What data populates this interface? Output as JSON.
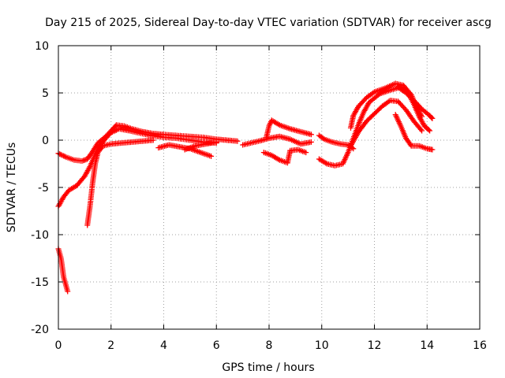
{
  "chart_data": {
    "type": "scatter",
    "title": "Day 215 of 2025, Sidereal Day-to-day VTEC variation (SDTVAR) for receiver ascg",
    "xlabel": "GPS time / hours",
    "ylabel": "SDTVAR / TECUs",
    "xlim": [
      0,
      16
    ],
    "ylim": [
      -20,
      10
    ],
    "xticks": [
      0,
      2,
      4,
      6,
      8,
      10,
      12,
      14,
      16
    ],
    "yticks": [
      -20,
      -15,
      -10,
      -5,
      0,
      5,
      10
    ],
    "xtick_labels": [
      "0",
      "2",
      "4",
      "6",
      "8",
      "10",
      "12",
      "14",
      "16"
    ],
    "ytick_labels": [
      "-20",
      "-15",
      "-10",
      "-5",
      "0",
      "5",
      "10"
    ],
    "grid": true,
    "marker": "+",
    "marker_color": "#ff0000",
    "series": [
      {
        "name": "arc-1",
        "points": [
          [
            0.0,
            -1.4
          ],
          [
            0.3,
            -1.8
          ],
          [
            0.6,
            -2.1
          ],
          [
            0.9,
            -2.2
          ],
          [
            1.1,
            -2.0
          ],
          [
            1.3,
            -1.2
          ],
          [
            1.5,
            -0.3
          ],
          [
            1.8,
            0.4
          ],
          [
            2.0,
            1.0
          ],
          [
            2.2,
            1.6
          ],
          [
            2.5,
            1.5
          ],
          [
            2.8,
            1.2
          ],
          [
            3.2,
            0.9
          ],
          [
            3.6,
            0.7
          ],
          [
            4.0,
            0.6
          ],
          [
            4.5,
            0.5
          ],
          [
            5.0,
            0.4
          ],
          [
            5.5,
            0.3
          ],
          [
            6.0,
            0.1
          ],
          [
            6.4,
            0.0
          ],
          [
            6.8,
            -0.1
          ]
        ]
      },
      {
        "name": "arc-2",
        "points": [
          [
            0.0,
            -7.0
          ],
          [
            0.2,
            -6.0
          ],
          [
            0.4,
            -5.3
          ],
          [
            0.7,
            -4.8
          ],
          [
            1.0,
            -3.8
          ],
          [
            1.2,
            -2.8
          ],
          [
            1.4,
            -1.5
          ],
          [
            1.6,
            -0.5
          ],
          [
            1.8,
            0.2
          ],
          [
            2.0,
            0.8
          ],
          [
            2.3,
            1.2
          ],
          [
            2.7,
            1.0
          ],
          [
            3.0,
            0.8
          ],
          [
            3.5,
            0.5
          ],
          [
            4.0,
            0.3
          ],
          [
            4.5,
            0.2
          ],
          [
            5.0,
            0.0
          ],
          [
            5.5,
            -0.2
          ],
          [
            6.0,
            -0.3
          ]
        ]
      },
      {
        "name": "arc-3",
        "points": [
          [
            1.1,
            -9.0
          ],
          [
            1.2,
            -7.0
          ],
          [
            1.3,
            -4.5
          ],
          [
            1.4,
            -2.5
          ],
          [
            1.5,
            -1.3
          ],
          [
            1.7,
            -0.6
          ],
          [
            2.0,
            -0.4
          ],
          [
            2.4,
            -0.3
          ],
          [
            2.8,
            -0.2
          ],
          [
            3.2,
            -0.1
          ],
          [
            3.6,
            0.0
          ]
        ]
      },
      {
        "name": "arc-4",
        "points": [
          [
            3.8,
            -0.8
          ],
          [
            4.2,
            -0.5
          ],
          [
            4.6,
            -0.7
          ],
          [
            5.0,
            -0.9
          ],
          [
            5.4,
            -1.3
          ],
          [
            5.8,
            -1.7
          ]
        ]
      },
      {
        "name": "arc-5",
        "points": [
          [
            4.8,
            -1.0
          ],
          [
            5.2,
            -0.6
          ],
          [
            5.6,
            -0.4
          ],
          [
            6.0,
            -0.2
          ]
        ]
      },
      {
        "name": "arc-6",
        "points": [
          [
            0.0,
            -11.5
          ],
          [
            0.1,
            -12.5
          ],
          [
            0.15,
            -13.5
          ],
          [
            0.2,
            -14.5
          ],
          [
            0.3,
            -15.5
          ],
          [
            0.35,
            -16.0
          ]
        ]
      },
      {
        "name": "arc-7",
        "points": [
          [
            7.0,
            -0.5
          ],
          [
            7.3,
            -0.3
          ],
          [
            7.6,
            -0.1
          ],
          [
            8.0,
            0.2
          ],
          [
            8.4,
            0.4
          ],
          [
            8.8,
            0.1
          ],
          [
            9.2,
            -0.4
          ],
          [
            9.6,
            -0.2
          ]
        ]
      },
      {
        "name": "arc-8",
        "points": [
          [
            7.8,
            -1.3
          ],
          [
            8.1,
            -1.6
          ],
          [
            8.4,
            -2.1
          ],
          [
            8.7,
            -2.4
          ],
          [
            8.8,
            -1.1
          ],
          [
            9.1,
            -1.0
          ],
          [
            9.4,
            -1.3
          ]
        ]
      },
      {
        "name": "arc-9",
        "points": [
          [
            7.9,
            0.3
          ],
          [
            8.0,
            1.5
          ],
          [
            8.1,
            2.1
          ],
          [
            8.4,
            1.6
          ],
          [
            8.8,
            1.2
          ],
          [
            9.2,
            0.9
          ],
          [
            9.6,
            0.6
          ]
        ]
      },
      {
        "name": "arc-10",
        "points": [
          [
            9.9,
            0.5
          ],
          [
            10.1,
            0.1
          ],
          [
            10.4,
            -0.2
          ],
          [
            10.7,
            -0.4
          ],
          [
            11.0,
            -0.5
          ],
          [
            11.2,
            -0.9
          ]
        ]
      },
      {
        "name": "arc-11",
        "points": [
          [
            9.9,
            -2.0
          ],
          [
            10.2,
            -2.5
          ],
          [
            10.5,
            -2.7
          ],
          [
            10.8,
            -2.5
          ],
          [
            11.0,
            -1.3
          ],
          [
            11.2,
            0.2
          ],
          [
            11.4,
            1.7
          ],
          [
            11.6,
            3.0
          ],
          [
            11.8,
            4.0
          ],
          [
            12.2,
            4.9
          ],
          [
            12.6,
            5.3
          ],
          [
            13.0,
            5.6
          ],
          [
            13.3,
            4.9
          ],
          [
            13.5,
            3.8
          ],
          [
            13.7,
            2.5
          ],
          [
            13.9,
            1.5
          ],
          [
            14.1,
            1.0
          ]
        ]
      },
      {
        "name": "arc-12",
        "points": [
          [
            11.1,
            1.3
          ],
          [
            11.2,
            2.6
          ],
          [
            11.4,
            3.6
          ],
          [
            11.7,
            4.5
          ],
          [
            12.0,
            5.1
          ],
          [
            12.4,
            5.5
          ],
          [
            12.8,
            6.0
          ],
          [
            13.1,
            5.8
          ],
          [
            13.4,
            4.8
          ],
          [
            13.6,
            3.5
          ],
          [
            13.8,
            2.5
          ]
        ]
      },
      {
        "name": "arc-13",
        "points": [
          [
            11.1,
            -0.6
          ],
          [
            11.4,
            0.9
          ],
          [
            11.7,
            2.0
          ],
          [
            12.0,
            2.8
          ],
          [
            12.3,
            3.6
          ],
          [
            12.6,
            4.2
          ],
          [
            12.9,
            4.1
          ],
          [
            13.2,
            3.2
          ],
          [
            13.5,
            2.0
          ],
          [
            13.8,
            1.0
          ]
        ]
      },
      {
        "name": "arc-14",
        "points": [
          [
            12.8,
            2.7
          ],
          [
            13.0,
            1.5
          ],
          [
            13.2,
            0.2
          ],
          [
            13.4,
            -0.6
          ],
          [
            13.7,
            -0.6
          ],
          [
            14.0,
            -0.9
          ],
          [
            14.2,
            -1.0
          ]
        ]
      },
      {
        "name": "arc-15",
        "points": [
          [
            12.9,
            5.6
          ],
          [
            13.2,
            5.0
          ],
          [
            13.5,
            4.2
          ],
          [
            13.8,
            3.3
          ],
          [
            14.1,
            2.6
          ],
          [
            14.2,
            2.3
          ]
        ]
      }
    ]
  }
}
